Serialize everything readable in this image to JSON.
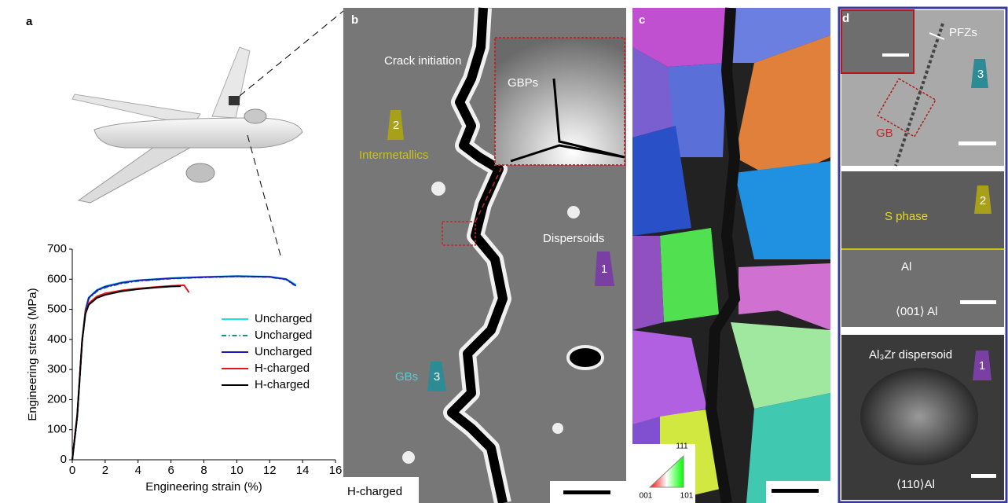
{
  "panels": {
    "a": {
      "label": "a"
    },
    "b": {
      "label": "b",
      "crack": "Crack initiation",
      "gbps": "GBPs",
      "intermetallics": "Intermetallics",
      "dispersoids": "Dispersoids",
      "gbs": "GBs",
      "condition": "H-charged",
      "marker1": "1",
      "marker2": "2",
      "marker3": "3"
    },
    "c": {
      "label": "c",
      "key": [
        "111",
        "001",
        "101"
      ]
    },
    "d": {
      "label": "d",
      "pfzs": "PFZs",
      "gb": "GB",
      "marker3": "3",
      "sphase": "S phase",
      "marker2": "2",
      "al": "Al",
      "zone1": "⟨001⟩ Al",
      "dispersoid": "Al₃Zr dispersoid",
      "marker1": "1",
      "zone2": "⟨110⟩Al"
    }
  },
  "chart_data": {
    "type": "line",
    "xlabel": "Engineering strain (%)",
    "ylabel": "Engineering stress (MPa)",
    "xlim": [
      0,
      16
    ],
    "xticks": [
      0,
      2,
      4,
      6,
      8,
      10,
      12,
      14,
      16
    ],
    "ylim": [
      0,
      700
    ],
    "yticks": [
      0,
      100,
      200,
      300,
      400,
      500,
      600,
      700
    ],
    "legend": "center right",
    "series": [
      {
        "name": "Uncharged",
        "color": "#1ee0f0",
        "linestyle": "solid",
        "x": [
          0,
          0.3,
          0.6,
          0.8,
          1,
          1.5,
          2,
          3,
          4,
          6,
          8,
          10,
          12,
          13,
          13.6
        ],
        "values": [
          0,
          150,
          400,
          500,
          540,
          565,
          577,
          590,
          597,
          604,
          608,
          611,
          609,
          601,
          582
        ]
      },
      {
        "name": "Uncharged",
        "color": "#1a8c8c",
        "linestyle": "dashdot",
        "x": [
          0,
          0.3,
          0.6,
          0.8,
          1,
          1.5,
          2,
          3,
          4,
          6,
          8,
          10,
          12,
          13,
          13.5
        ],
        "values": [
          0,
          140,
          390,
          490,
          535,
          560,
          572,
          586,
          594,
          602,
          606,
          609,
          607,
          599,
          580
        ]
      },
      {
        "name": "Uncharged",
        "color": "#1a1ab4",
        "linestyle": "solid",
        "x": [
          0,
          0.3,
          0.6,
          0.8,
          1,
          1.5,
          2,
          3,
          4,
          6,
          8,
          10,
          12,
          13,
          13.6
        ],
        "values": [
          0,
          145,
          395,
          495,
          538,
          563,
          575,
          588,
          596,
          603,
          607,
          610,
          608,
          600,
          578
        ]
      },
      {
        "name": "H-charged",
        "color": "#e01a1a",
        "linestyle": "solid",
        "x": [
          0,
          0.3,
          0.6,
          0.8,
          1,
          1.5,
          2,
          3,
          4,
          5,
          6,
          6.8,
          7.1
        ],
        "values": [
          0,
          150,
          400,
          490,
          520,
          543,
          553,
          563,
          569,
          574,
          578,
          580,
          556
        ]
      },
      {
        "name": "H-charged",
        "color": "#000000",
        "linestyle": "solid",
        "x": [
          0,
          0.3,
          0.6,
          0.8,
          1,
          1.5,
          2,
          3,
          4,
          5,
          6,
          6.6
        ],
        "values": [
          0,
          145,
          395,
          485,
          515,
          538,
          548,
          560,
          567,
          572,
          576,
          577
        ]
      }
    ]
  }
}
